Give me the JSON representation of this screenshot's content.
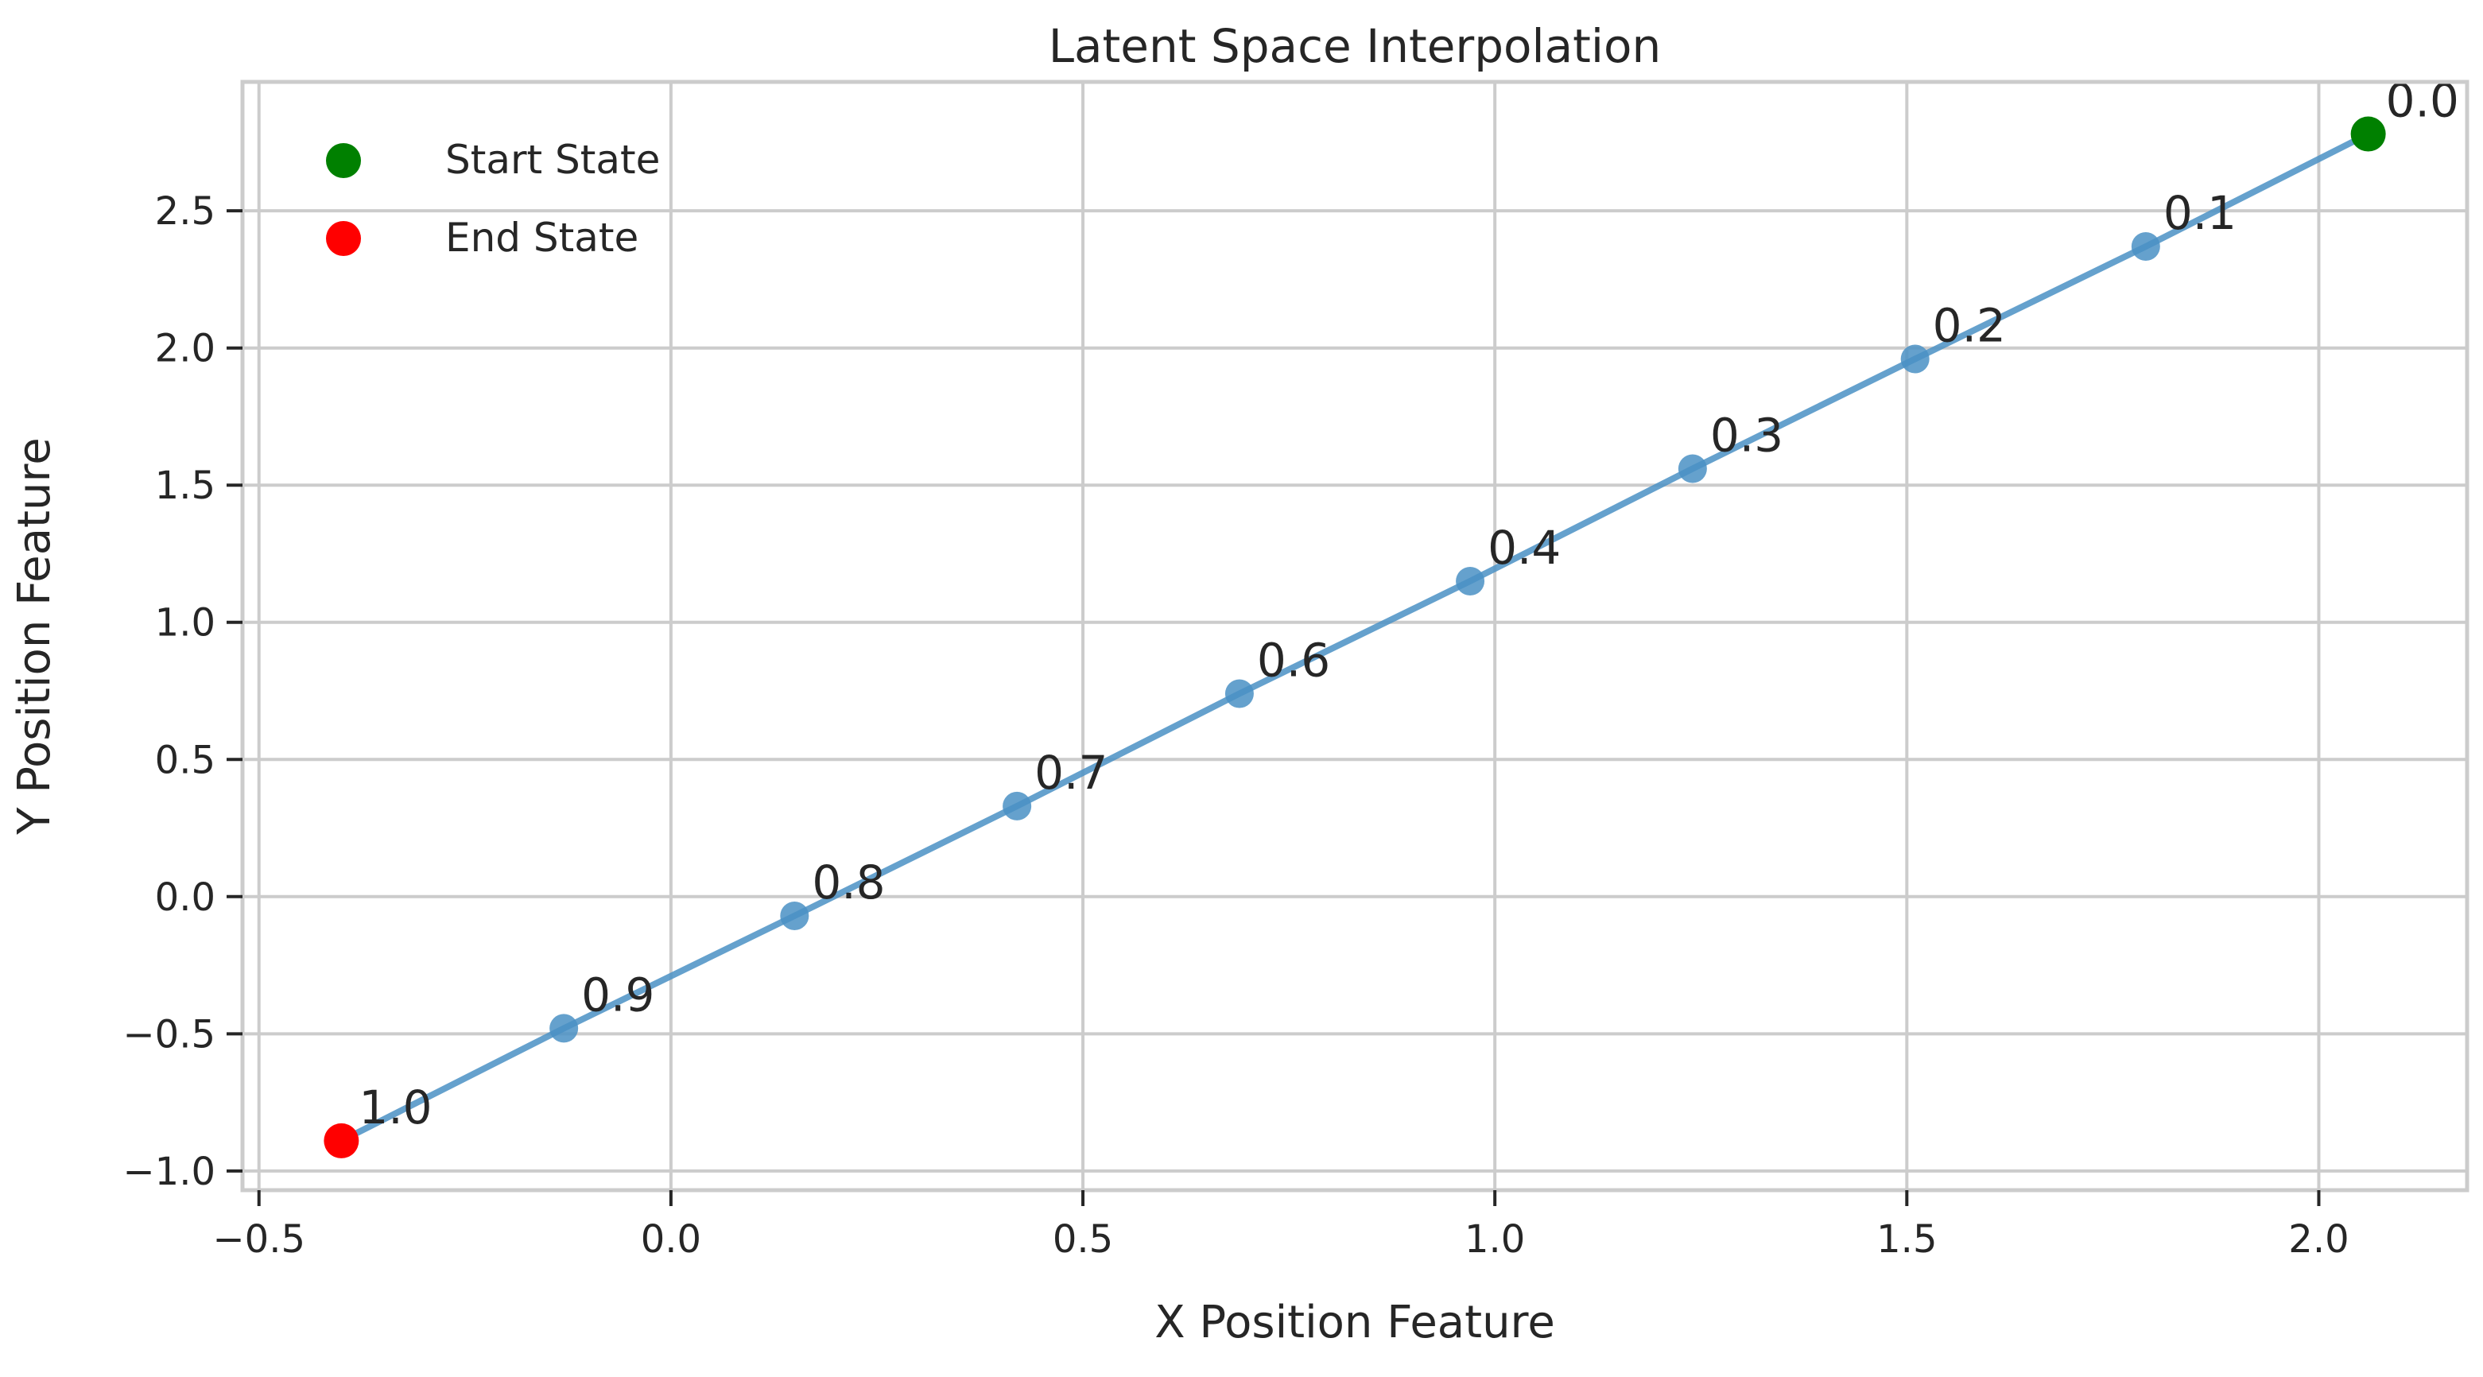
{
  "chart_data": {
    "type": "line",
    "title": "Latent Space Interpolation",
    "xlabel": "X Position Feature",
    "ylabel": "Y Position Feature",
    "xlim": [
      -0.52,
      2.18
    ],
    "ylim": [
      -1.07,
      2.97
    ],
    "xticks": [
      -0.5,
      0.0,
      0.5,
      1.0,
      1.5,
      2.0
    ],
    "xtick_labels": [
      "−0.5",
      "0.0",
      "0.5",
      "1.0",
      "1.5",
      "2.0"
    ],
    "yticks": [
      -1.0,
      -0.5,
      0.0,
      0.5,
      1.0,
      1.5,
      2.0,
      2.5
    ],
    "ytick_labels": [
      "−1.0",
      "−0.5",
      "0.0",
      "0.5",
      "1.0",
      "1.5",
      "2.0",
      "2.5"
    ],
    "grid": true,
    "legend_position": "top-left",
    "colors": {
      "line": "#4a90c4",
      "start": "#008000",
      "end": "#ff0000",
      "grid": "#cccccc",
      "spine": "#cccccc"
    },
    "series": [
      {
        "points": [
          {
            "x": 2.06,
            "y": 2.78,
            "label": "0.0"
          },
          {
            "x": 1.79,
            "y": 2.37,
            "label": "0.1"
          },
          {
            "x": 1.51,
            "y": 1.96,
            "label": "0.2"
          },
          {
            "x": 1.24,
            "y": 1.56,
            "label": "0.3"
          },
          {
            "x": 0.97,
            "y": 1.15,
            "label": "0.4"
          },
          {
            "x": 0.69,
            "y": 0.74,
            "label": "0.6"
          },
          {
            "x": 0.42,
            "y": 0.33,
            "label": "0.7"
          },
          {
            "x": 0.15,
            "y": -0.07,
            "label": "0.8"
          },
          {
            "x": -0.13,
            "y": -0.48,
            "label": "0.9"
          },
          {
            "x": -0.4,
            "y": -0.89,
            "label": "1.0"
          }
        ]
      },
      {
        "name": "Start State",
        "x": 2.06,
        "y": 2.78
      },
      {
        "name": "End State",
        "x": -0.4,
        "y": -0.89
      }
    ]
  }
}
